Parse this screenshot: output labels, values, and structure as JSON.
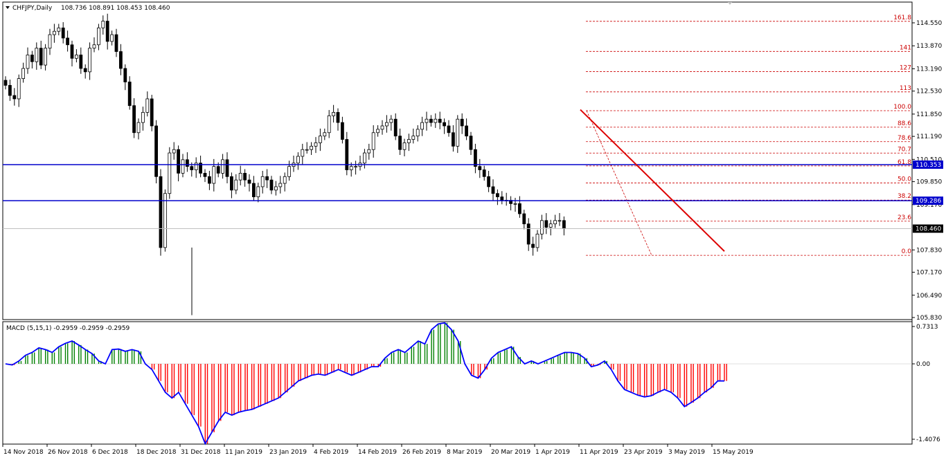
{
  "header": {
    "symbol": "CHFJPY,Daily",
    "ohlc": "108.736 108.891 108.453 108.460"
  },
  "macd": {
    "label": "MACD (5,15,1) -0.2959 -0.2959 -0.2959",
    "axis_ticks": [
      "0.7313",
      "0.00",
      "-1.4076"
    ]
  },
  "price_axis_ticks": [
    "114.550",
    "113.870",
    "113.190",
    "112.530",
    "111.850",
    "111.190",
    "110.510",
    "109.850",
    "109.170",
    "107.830",
    "107.170",
    "106.490",
    "105.830"
  ],
  "price_tags": {
    "line_upper": "110.353",
    "line_lower": "109.286",
    "current": "108.460"
  },
  "x_axis_labels": [
    "14 Nov 2018",
    "26 Nov 2018",
    "6 Dec 2018",
    "18 Dec 2018",
    "31 Dec 2018",
    "11 Jan 2019",
    "23 Jan 2019",
    "4 Feb 2019",
    "14 Feb 2019",
    "26 Feb 2019",
    "8 Mar 2019",
    "20 Mar 2019",
    "1 Apr 2019",
    "11 Apr 2019",
    "23 Apr 2019",
    "3 May 2019",
    "15 May 2019"
  ],
  "fib_levels": [
    "161.8",
    "141",
    "127",
    "113",
    "100.0",
    "88.6",
    "78.6",
    "70.7",
    "61.8",
    "50.0",
    "38.2",
    "23.6",
    "0.0"
  ],
  "colors": {
    "bull_hist": "#008000",
    "bear_hist": "#ff0000",
    "macd_line": "#0000ff",
    "hline": "#0000cc",
    "trendline": "#dd0000",
    "fib": "#cc0000"
  },
  "chart_data": {
    "type": "candlestick",
    "symbol": "CHFJPY",
    "timeframe": "Daily",
    "ohlc_last": {
      "open": 108.736,
      "high": 108.891,
      "low": 108.453,
      "close": 108.46
    },
    "ylim": [
      105.83,
      115.0
    ],
    "horizontal_lines": [
      110.353,
      109.286
    ],
    "fibonacci": {
      "levels": [
        0.0,
        23.6,
        38.2,
        50.0,
        61.8,
        70.7,
        78.6,
        88.6,
        100.0,
        113,
        127,
        141,
        161.8
      ],
      "low": 107.67,
      "high": 111.95
    },
    "trendline": {
      "from": 111.98,
      "to": 107.79
    },
    "close_series": [
      112.7,
      112.4,
      112.3,
      112.9,
      113.2,
      113.6,
      113.4,
      113.8,
      113.3,
      113.8,
      114.2,
      114.3,
      114.4,
      114.1,
      113.9,
      113.5,
      113.6,
      113.2,
      113.1,
      113.8,
      113.9,
      114.4,
      114.6,
      114.0,
      114.2,
      113.7,
      113.2,
      112.8,
      112.1,
      111.3,
      111.6,
      111.9,
      112.3,
      111.5,
      110.0,
      107.9,
      109.5,
      110.7,
      110.8,
      110.1,
      110.5,
      110.3,
      110.2,
      110.4,
      110.1,
      110.0,
      109.8,
      110.3,
      110.1,
      110.5,
      110.0,
      109.6,
      109.9,
      110.1,
      109.9,
      109.8,
      109.4,
      109.7,
      110.0,
      109.9,
      109.6,
      109.7,
      109.8,
      110.0,
      110.3,
      110.4,
      110.6,
      110.8,
      110.8,
      110.9,
      111.0,
      111.2,
      111.3,
      111.8,
      111.9,
      111.6,
      111.1,
      110.2,
      110.3,
      110.3,
      110.4,
      110.7,
      110.8,
      111.3,
      111.4,
      111.5,
      111.6,
      111.7,
      111.2,
      110.8,
      111.0,
      111.1,
      111.2,
      111.4,
      111.6,
      111.7,
      111.6,
      111.7,
      111.6,
      111.5,
      111.3,
      110.9,
      111.7,
      111.5,
      111.2,
      110.8,
      110.3,
      110.2,
      110.0,
      109.7,
      109.5,
      109.4,
      109.3,
      109.3,
      109.2,
      109.2,
      108.9,
      108.6,
      108.0,
      107.9,
      108.3,
      108.7,
      108.5,
      108.6,
      108.7,
      108.7,
      108.46
    ],
    "macd_hist": [
      0.0,
      -0.02,
      0.05,
      0.15,
      0.2,
      0.28,
      0.25,
      0.2,
      0.3,
      0.36,
      0.4,
      0.33,
      0.25,
      0.18,
      0.05,
      0.0,
      0.25,
      0.26,
      0.22,
      0.25,
      0.22,
      0.0,
      -0.1,
      -0.3,
      -0.5,
      -0.6,
      -0.5,
      -0.7,
      -0.9,
      -1.1,
      -1.4,
      -1.2,
      -1.0,
      -0.85,
      -0.9,
      -0.85,
      -0.82,
      -0.8,
      -0.75,
      -0.7,
      -0.65,
      -0.6,
      -0.5,
      -0.4,
      -0.3,
      -0.25,
      -0.2,
      -0.18,
      -0.2,
      -0.15,
      -0.1,
      -0.15,
      -0.2,
      -0.15,
      -0.1,
      -0.05,
      -0.05,
      0.1,
      0.2,
      0.25,
      0.2,
      0.3,
      0.4,
      0.35,
      0.6,
      0.7,
      0.72,
      0.6,
      0.4,
      0.0,
      -0.2,
      -0.25,
      -0.1,
      0.1,
      0.2,
      0.25,
      0.3,
      0.12,
      0.0,
      0.05,
      0.0,
      0.05,
      0.1,
      0.15,
      0.2,
      0.2,
      0.18,
      0.1,
      -0.05,
      -0.02,
      0.05,
      -0.1,
      -0.3,
      -0.45,
      -0.5,
      -0.55,
      -0.58,
      -0.56,
      -0.5,
      -0.45,
      -0.5,
      -0.6,
      -0.75,
      -0.68,
      -0.6,
      -0.5,
      -0.42,
      -0.3,
      -0.3
    ]
  }
}
